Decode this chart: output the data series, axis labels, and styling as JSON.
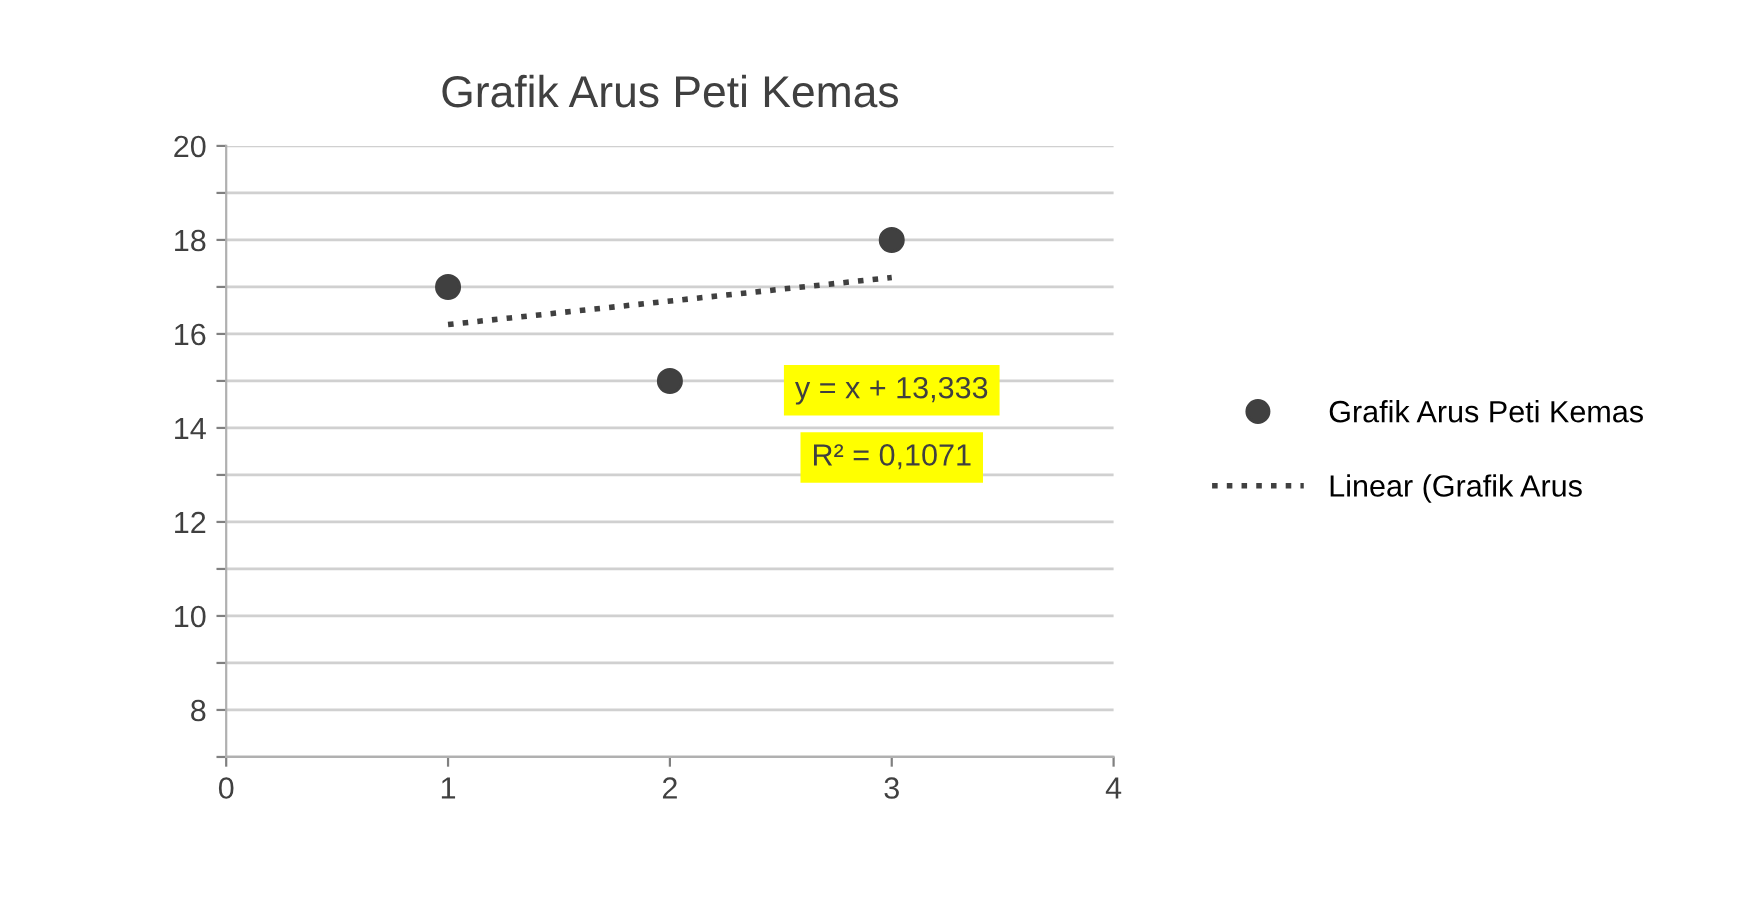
{
  "chart_data": {
    "type": "scatter",
    "title": "Grafik Arus Peti Kemas",
    "series": [
      {
        "name": "Grafik Arus Peti Kemas",
        "color": "#404040",
        "x": [
          1,
          2,
          3
        ],
        "values": [
          17,
          15,
          18
        ],
        "marker": "circle"
      },
      {
        "name": "Linear (Grafik Arus",
        "type": "line",
        "color": "#404040",
        "x": [
          1,
          3
        ],
        "values": [
          16.2,
          17.2
        ],
        "line_style": "dotted",
        "marker": "none"
      }
    ],
    "annotations": [
      "y = x + 13,333",
      "R² = 0,1071"
    ],
    "xlim": [
      0,
      4
    ],
    "xticks": [
      0,
      1,
      2,
      3,
      4
    ],
    "ylim": [
      7,
      20
    ],
    "yticks": [
      {
        "value": 7,
        "label": null
      },
      8,
      {
        "value": 9,
        "label": null
      },
      10,
      {
        "value": 11,
        "label": null
      },
      12,
      {
        "value": 13,
        "label": null
      },
      14,
      {
        "value": 15,
        "label": null
      },
      16,
      {
        "value": 17,
        "label": null
      },
      18,
      {
        "value": 19,
        "label": null
      },
      20
    ],
    "grid": "y",
    "legend": "right"
  }
}
